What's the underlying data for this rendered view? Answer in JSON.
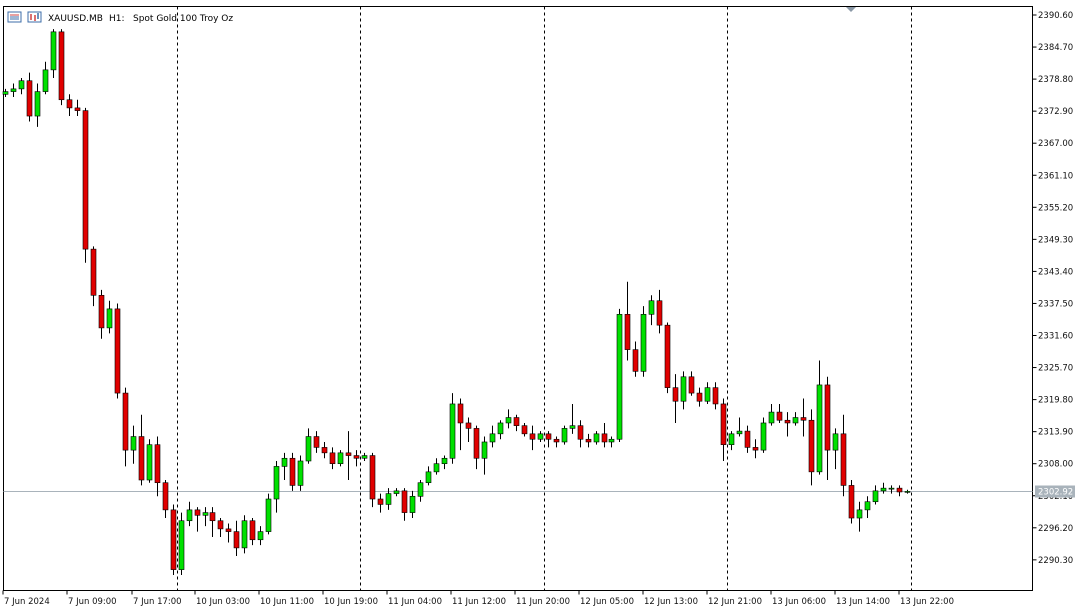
{
  "header": {
    "symbol": "XAUUSD.MB",
    "timeframe": "H1:",
    "description": "Spot Gold 100 Troy Oz"
  },
  "chart_data": {
    "type": "candlestick",
    "symbol": "XAUUSD.MB",
    "timeframe": "H1",
    "ylim": [
      2285.5,
      2392.0
    ],
    "y_ticks": [
      "2390.60",
      "2384.70",
      "2378.80",
      "2372.90",
      "2367.00",
      "2361.10",
      "2355.20",
      "2349.30",
      "2343.40",
      "2337.50",
      "2331.60",
      "2325.70",
      "2319.80",
      "2313.90",
      "2308.00",
      "2302.10",
      "2296.20",
      "2290.30"
    ],
    "x_labels": [
      "7 Jun 2024",
      "7 Jun 09:00",
      "7 Jun 17:00",
      "10 Jun 03:00",
      "10 Jun 11:00",
      "10 Jun 19:00",
      "11 Jun 04:00",
      "11 Jun 12:00",
      "11 Jun 20:00",
      "12 Jun 05:00",
      "12 Jun 13:00",
      "12 Jun 21:00",
      "13 Jun 06:00",
      "13 Jun 14:00",
      "13 Jun 22:00"
    ],
    "current_price": 2302.92,
    "current_price_label": "2302.92",
    "bull_color": "#00e000",
    "bear_color": "#e00000",
    "grid_color": "#000000",
    "current_line_color": "#a9b3bb",
    "candles": [
      [
        2376.0,
        2377.0,
        2375.5,
        2376.5
      ],
      [
        2376.5,
        2378.0,
        2375.5,
        2377.0
      ],
      [
        2377.0,
        2379.0,
        2376.0,
        2378.5
      ],
      [
        2378.5,
        2380.0,
        2371.0,
        2372.0
      ],
      [
        2372.0,
        2378.0,
        2370.0,
        2376.5
      ],
      [
        2376.5,
        2382.0,
        2376.0,
        2380.5
      ],
      [
        2380.5,
        2388.0,
        2379.0,
        2387.5
      ],
      [
        2387.5,
        2388.0,
        2374.0,
        2375.0
      ],
      [
        2375.0,
        2376.0,
        2372.0,
        2373.5
      ],
      [
        2373.5,
        2375.0,
        2372.0,
        2373.0
      ],
      [
        2373.0,
        2373.5,
        2345.0,
        2347.5
      ],
      [
        2347.5,
        2348.0,
        2337.0,
        2339.0
      ],
      [
        2339.0,
        2340.0,
        2331.0,
        2333.0
      ],
      [
        2333.0,
        2338.0,
        2332.0,
        2336.5
      ],
      [
        2336.5,
        2337.5,
        2320.0,
        2321.0
      ],
      [
        2321.0,
        2322.0,
        2307.5,
        2310.5
      ],
      [
        2310.5,
        2315.0,
        2308.0,
        2313.0
      ],
      [
        2313.0,
        2317.0,
        2304.0,
        2305.0
      ],
      [
        2305.0,
        2312.5,
        2304.5,
        2311.5
      ],
      [
        2311.5,
        2313.0,
        2302.0,
        2304.5
      ],
      [
        2304.5,
        2305.0,
        2298.0,
        2299.5
      ],
      [
        2299.5,
        2300.5,
        2287.5,
        2288.5
      ],
      [
        2288.5,
        2299.0,
        2287.5,
        2297.5
      ],
      [
        2297.5,
        2301.0,
        2296.5,
        2299.5
      ],
      [
        2299.5,
        2300.0,
        2295.5,
        2298.5
      ],
      [
        2298.5,
        2300.0,
        2296.5,
        2299.0
      ],
      [
        2299.0,
        2300.0,
        2294.5,
        2297.5
      ],
      [
        2297.5,
        2298.0,
        2294.5,
        2296.0
      ],
      [
        2296.0,
        2297.0,
        2293.5,
        2295.5
      ],
      [
        2295.5,
        2297.5,
        2291.0,
        2292.5
      ],
      [
        2292.5,
        2298.5,
        2291.5,
        2297.5
      ],
      [
        2297.5,
        2298.0,
        2293.0,
        2294.0
      ],
      [
        2294.0,
        2296.5,
        2293.0,
        2295.5
      ],
      [
        2295.5,
        2302.5,
        2295.0,
        2301.5
      ],
      [
        2301.5,
        2308.5,
        2299.0,
        2307.5
      ],
      [
        2307.5,
        2310.0,
        2305.0,
        2309.0
      ],
      [
        2309.0,
        2310.0,
        2303.0,
        2304.0
      ],
      [
        2304.0,
        2309.5,
        2303.0,
        2308.5
      ],
      [
        2308.5,
        2314.5,
        2308.0,
        2313.0
      ],
      [
        2313.0,
        2314.0,
        2310.0,
        2311.0
      ],
      [
        2311.0,
        2312.0,
        2309.0,
        2310.0
      ],
      [
        2310.0,
        2311.0,
        2307.0,
        2308.0
      ],
      [
        2308.0,
        2310.5,
        2307.5,
        2310.0
      ],
      [
        2310.0,
        2314.0,
        2305.0,
        2309.5
      ],
      [
        2309.5,
        2310.5,
        2307.5,
        2309.0
      ],
      [
        2309.0,
        2310.0,
        2308.5,
        2309.5
      ],
      [
        2309.5,
        2310.0,
        2300.0,
        2301.5
      ],
      [
        2301.5,
        2302.5,
        2299.0,
        2300.5
      ],
      [
        2300.5,
        2303.5,
        2299.5,
        2302.5
      ],
      [
        2302.5,
        2303.5,
        2302.0,
        2303.0
      ],
      [
        2303.0,
        2303.5,
        2297.5,
        2299.0
      ],
      [
        2299.0,
        2303.0,
        2298.0,
        2302.0
      ],
      [
        2302.0,
        2305.0,
        2301.0,
        2304.5
      ],
      [
        2304.5,
        2307.5,
        2304.0,
        2306.5
      ],
      [
        2306.5,
        2309.0,
        2306.0,
        2308.0
      ],
      [
        2308.0,
        2309.5,
        2307.0,
        2309.0
      ],
      [
        2309.0,
        2321.0,
        2308.0,
        2319.0
      ],
      [
        2319.0,
        2320.0,
        2310.5,
        2315.5
      ],
      [
        2315.5,
        2316.5,
        2312.0,
        2314.5
      ],
      [
        2314.5,
        2315.0,
        2307.0,
        2309.0
      ],
      [
        2309.0,
        2313.0,
        2306.0,
        2312.0
      ],
      [
        2312.0,
        2315.0,
        2311.0,
        2313.5
      ],
      [
        2313.5,
        2316.0,
        2312.5,
        2315.5
      ],
      [
        2315.5,
        2318.0,
        2314.5,
        2316.5
      ],
      [
        2316.5,
        2317.0,
        2314.0,
        2315.0
      ],
      [
        2315.0,
        2315.5,
        2313.0,
        2313.5
      ],
      [
        2313.5,
        2315.0,
        2310.5,
        2312.5
      ],
      [
        2312.5,
        2314.0,
        2312.0,
        2313.5
      ],
      [
        2313.5,
        2314.0,
        2311.0,
        2312.5
      ],
      [
        2312.5,
        2313.0,
        2311.0,
        2312.0
      ],
      [
        2312.0,
        2315.0,
        2311.5,
        2314.5
      ],
      [
        2314.5,
        2319.0,
        2313.5,
        2315.0
      ],
      [
        2315.0,
        2316.0,
        2311.0,
        2312.5
      ],
      [
        2312.5,
        2313.5,
        2311.0,
        2312.0
      ],
      [
        2312.0,
        2314.0,
        2311.5,
        2313.5
      ],
      [
        2313.5,
        2315.5,
        2311.0,
        2312.0
      ],
      [
        2312.0,
        2313.0,
        2311.0,
        2312.5
      ],
      [
        2312.5,
        2336.5,
        2312.0,
        2335.5
      ],
      [
        2335.5,
        2341.5,
        2327.0,
        2329.0
      ],
      [
        2329.0,
        2330.5,
        2324.0,
        2325.0
      ],
      [
        2325.0,
        2337.0,
        2324.0,
        2335.5
      ],
      [
        2335.5,
        2339.0,
        2333.5,
        2338.0
      ],
      [
        2338.0,
        2340.0,
        2332.0,
        2333.5
      ],
      [
        2333.5,
        2334.0,
        2321.0,
        2322.0
      ],
      [
        2322.0,
        2324.5,
        2315.5,
        2319.5
      ],
      [
        2319.5,
        2325.0,
        2318.0,
        2324.0
      ],
      [
        2324.0,
        2325.0,
        2320.5,
        2321.0
      ],
      [
        2321.0,
        2322.0,
        2318.5,
        2319.5
      ],
      [
        2319.5,
        2323.0,
        2319.0,
        2322.0
      ],
      [
        2322.0,
        2323.0,
        2318.0,
        2319.0
      ],
      [
        2319.0,
        2320.0,
        2308.5,
        2311.5
      ],
      [
        2311.5,
        2314.0,
        2310.5,
        2313.5
      ],
      [
        2313.5,
        2316.5,
        2313.0,
        2314.0
      ],
      [
        2314.0,
        2315.0,
        2310.0,
        2311.0
      ],
      [
        2311.0,
        2312.5,
        2309.0,
        2310.5
      ],
      [
        2310.5,
        2316.5,
        2310.0,
        2315.5
      ],
      [
        2315.5,
        2319.0,
        2315.0,
        2317.5
      ],
      [
        2317.5,
        2319.0,
        2315.5,
        2316.0
      ],
      [
        2316.0,
        2317.5,
        2313.0,
        2315.5
      ],
      [
        2315.5,
        2317.5,
        2315.0,
        2316.5
      ],
      [
        2316.5,
        2320.0,
        2313.0,
        2316.0
      ],
      [
        2316.0,
        2318.0,
        2304.0,
        2306.5
      ],
      [
        2306.5,
        2327.0,
        2306.0,
        2322.5
      ],
      [
        2322.5,
        2324.0,
        2305.0,
        2310.5
      ],
      [
        2310.5,
        2314.5,
        2307.0,
        2313.5
      ],
      [
        2313.5,
        2317.0,
        2302.0,
        2304.0
      ],
      [
        2304.0,
        2305.0,
        2297.0,
        2298.0
      ],
      [
        2298.0,
        2301.0,
        2295.5,
        2299.5
      ],
      [
        2299.5,
        2302.0,
        2298.0,
        2301.0
      ],
      [
        2301.0,
        2304.0,
        2300.5,
        2303.0
      ],
      [
        2303.0,
        2304.5,
        2302.5,
        2303.5
      ],
      [
        2303.5,
        2304.0,
        2302.5,
        2303.5
      ],
      [
        2303.5,
        2304.0,
        2302.0,
        2302.8
      ],
      [
        2302.8,
        2303.2,
        2302.5,
        2302.9
      ]
    ]
  }
}
